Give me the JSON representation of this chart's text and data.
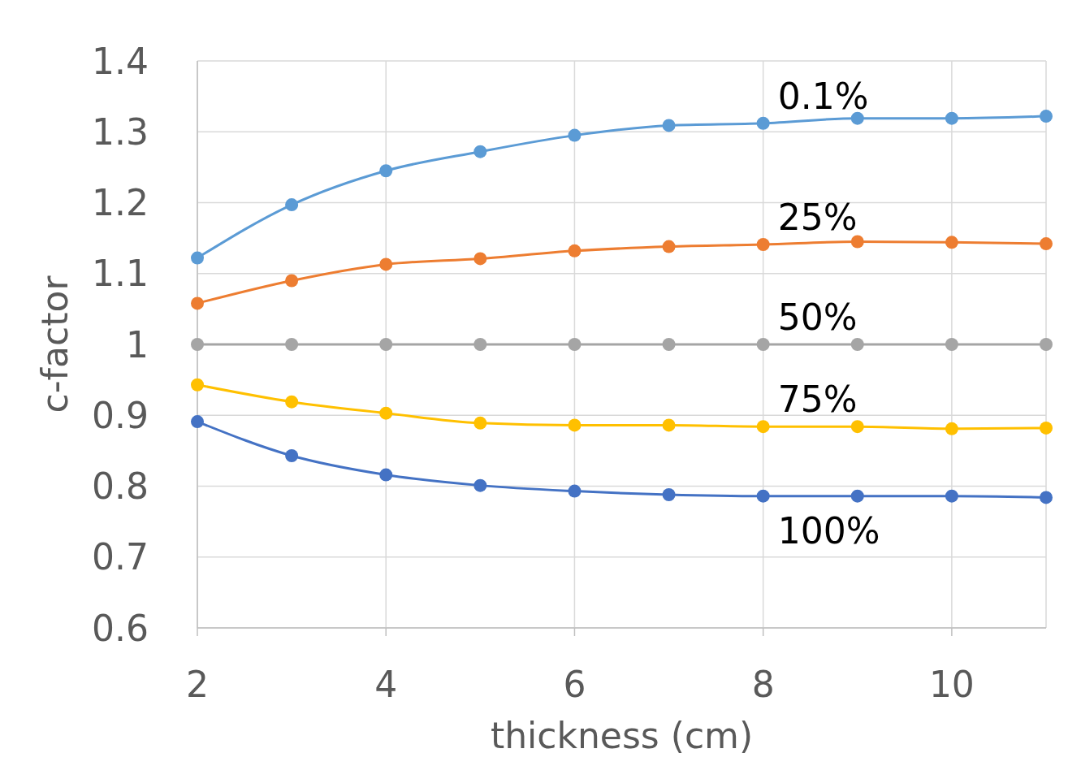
{
  "chart_data": {
    "type": "line",
    "xlabel": "thickness (cm)",
    "ylabel": "c-factor",
    "x": [
      2,
      3,
      4,
      5,
      6,
      7,
      8,
      9,
      10,
      11
    ],
    "series": [
      {
        "name": "0.1%",
        "color": "#5b9bd5",
        "values": [
          1.122,
          1.197,
          1.245,
          1.272,
          1.295,
          1.309,
          1.312,
          1.319,
          1.319,
          1.322
        ]
      },
      {
        "name": "25%",
        "color": "#ed7d31",
        "values": [
          1.058,
          1.09,
          1.113,
          1.121,
          1.132,
          1.138,
          1.141,
          1.145,
          1.144,
          1.142
        ]
      },
      {
        "name": "50%",
        "color": "#a5a5a5",
        "values": [
          1,
          1,
          1,
          1,
          1,
          1,
          1,
          1,
          1,
          1
        ]
      },
      {
        "name": "75%",
        "color": "#ffc000",
        "values": [
          0.943,
          0.919,
          0.903,
          0.889,
          0.886,
          0.886,
          0.884,
          0.884,
          0.881,
          0.882
        ]
      },
      {
        "name": "100%",
        "color": "#4472c4",
        "values": [
          0.891,
          0.843,
          0.816,
          0.801,
          0.793,
          0.788,
          0.786,
          0.786,
          0.786,
          0.784
        ]
      }
    ],
    "xlim": [
      2,
      11
    ],
    "xticks": [
      2,
      4,
      6,
      8,
      10
    ],
    "ylim": [
      0.6,
      1.4
    ],
    "yticks": [
      0.6,
      0.7,
      0.8,
      0.9,
      1,
      1.1,
      1.2,
      1.3,
      1.4
    ],
    "grid": true,
    "marker": "circle",
    "line_style": "solid"
  }
}
